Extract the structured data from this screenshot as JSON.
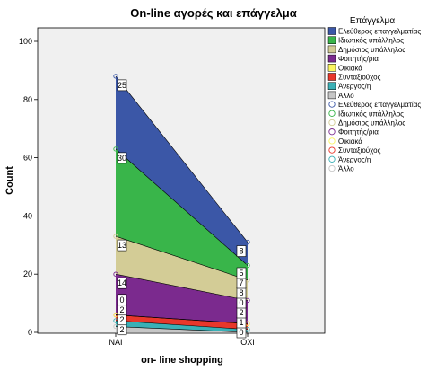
{
  "chart_data": {
    "type": "area",
    "title": "On-line αγορές και επάγγελμα",
    "xlabel": "on- line shopping",
    "ylabel": "Count",
    "categories": [
      "ΝΑΙ",
      "ΟΧΙ"
    ],
    "ylim": [
      0,
      100
    ],
    "yticks": [
      "0",
      "20",
      "40",
      "60",
      "80",
      "100"
    ],
    "stacked": true,
    "legend_title": "Επάγγελμα",
    "legend_position": "right",
    "series": [
      {
        "name": "Άλλο",
        "values": [
          2,
          0
        ],
        "color": "#c6c6c6",
        "labels": [
          "2",
          "0"
        ]
      },
      {
        "name": "Άνεργος/η",
        "values": [
          2,
          1
        ],
        "color": "#3ab0b6",
        "labels": [
          "2",
          "1"
        ]
      },
      {
        "name": "Συνταξιούχος",
        "values": [
          2,
          2
        ],
        "color": "#e8372b",
        "labels": [
          "2",
          "2"
        ]
      },
      {
        "name": "Οικιακά",
        "values": [
          0,
          0
        ],
        "color": "#fbf55f",
        "labels": [
          "0",
          "0"
        ]
      },
      {
        "name": "Φοιτητής/ρια",
        "values": [
          14,
          8
        ],
        "color": "#7b2a8e",
        "labels": [
          "14",
          "8"
        ]
      },
      {
        "name": "Δημόσιος υπάλληλος",
        "values": [
          13,
          7
        ],
        "color": "#d3cc96",
        "labels": [
          "13",
          "7"
        ]
      },
      {
        "name": "Ιδιωτικός υπάλληλος",
        "values": [
          30,
          5
        ],
        "color": "#39b54a",
        "labels": [
          "30",
          "5"
        ]
      },
      {
        "name": "Ελεύθερος επαγγελματίας",
        "values": [
          25,
          8
        ],
        "color": "#3b57a7",
        "labels": [
          "25",
          "8"
        ]
      }
    ],
    "legend_fill": [
      {
        "name": "Ελεύθερος επαγγελματίας",
        "color": "#3b57a7"
      },
      {
        "name": "Ιδιωτικός υπάλληλος",
        "color": "#39b54a"
      },
      {
        "name": "Δημόσιος υπάλληλος",
        "color": "#d3cc96"
      },
      {
        "name": "Φοιτητής/ρια",
        "color": "#7b2a8e"
      },
      {
        "name": "Οικιακά",
        "color": "#fbf55f"
      },
      {
        "name": "Συνταξιούχος",
        "color": "#e8372b"
      },
      {
        "name": "Άνεργος/η",
        "color": "#3ab0b6"
      },
      {
        "name": "Άλλο",
        "color": "#c6c6c6"
      }
    ],
    "legend_markers": [
      {
        "name": "Ελεύθερος επαγγελματίας",
        "color": "#3b57a7"
      },
      {
        "name": "Ιδιωτικός υπάλληλος",
        "color": "#39b54a"
      },
      {
        "name": "Δημόσιος υπάλληλος",
        "color": "#d3cc96"
      },
      {
        "name": "Φοιτητής/ρια",
        "color": "#7b2a8e"
      },
      {
        "name": "Οικιακά",
        "color": "#fbf55f"
      },
      {
        "name": "Συνταξιούχος",
        "color": "#e8372b"
      },
      {
        "name": "Άνεργος/η",
        "color": "#3ab0b6"
      },
      {
        "name": "Άλλο",
        "color": "#c6c6c6"
      }
    ],
    "grid": false
  }
}
